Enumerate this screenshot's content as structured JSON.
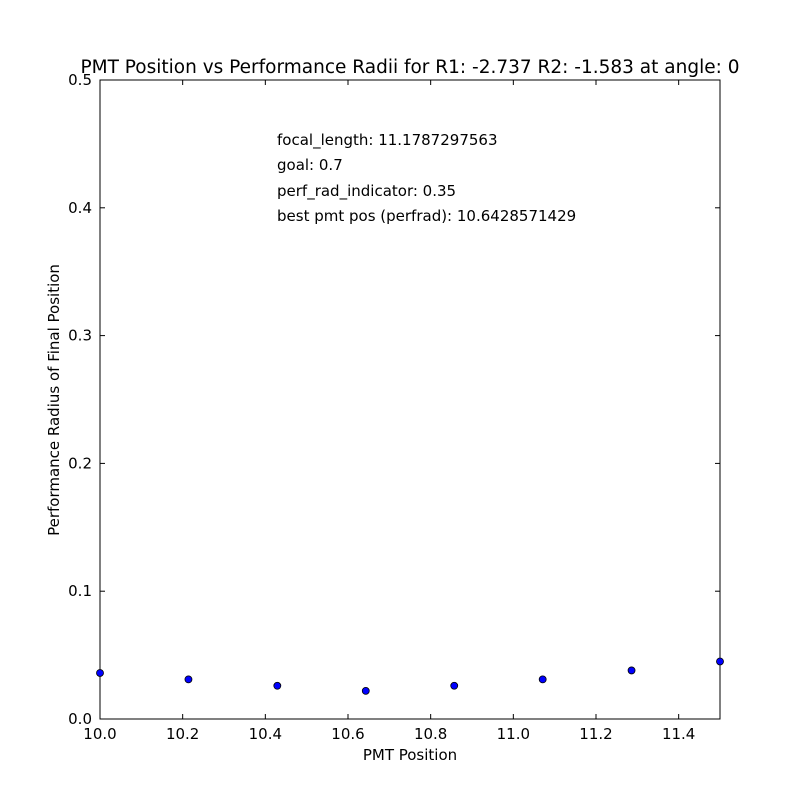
{
  "chart_data": {
    "type": "scatter",
    "title": "PMT Position vs Performance Radii for R1: -2.737 R2: -1.583 at angle: 0",
    "xlabel": "PMT Position",
    "ylabel": "Performance Radius of Final Position",
    "xlim": [
      10.0,
      11.5
    ],
    "ylim": [
      0.0,
      0.5
    ],
    "xticks": [
      10.0,
      10.2,
      10.4,
      10.6,
      10.8,
      11.0,
      11.2,
      11.4
    ],
    "xtick_labels": [
      "10.0",
      "10.2",
      "10.4",
      "10.6",
      "10.8",
      "11.0",
      "11.2",
      "11.4"
    ],
    "yticks": [
      0.0,
      0.1,
      0.2,
      0.3,
      0.4,
      0.5
    ],
    "ytick_labels": [
      "0.0",
      "0.1",
      "0.2",
      "0.3",
      "0.4",
      "0.5"
    ],
    "grid": false,
    "series": [
      {
        "color": "#0000ff",
        "points": [
          {
            "x": 10.0,
            "y": 0.036
          },
          {
            "x": 10.214,
            "y": 0.031
          },
          {
            "x": 10.429,
            "y": 0.026
          },
          {
            "x": 10.643,
            "y": 0.022
          },
          {
            "x": 10.857,
            "y": 0.026
          },
          {
            "x": 11.071,
            "y": 0.031
          },
          {
            "x": 11.286,
            "y": 0.038
          },
          {
            "x": 11.5,
            "y": 0.045
          }
        ]
      }
    ],
    "annotations": [
      "focal_length: 11.1787297563",
      "goal: 0.7",
      "perf_rad_indicator: 0.35",
      "best pmt pos (perfrad): 10.6428571429"
    ]
  }
}
